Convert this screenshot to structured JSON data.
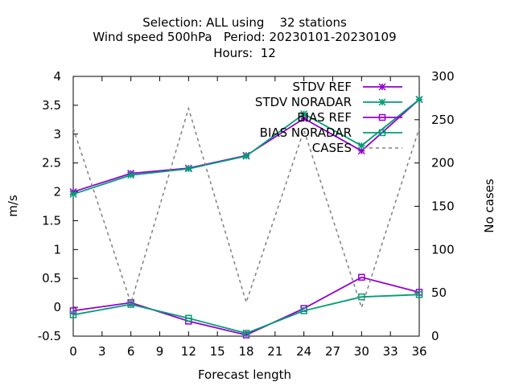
{
  "chart_data": {
    "type": "line",
    "title_lines": [
      "Selection: ALL using    32 stations",
      "Wind speed 500hPa   Period: 20230101-20230109",
      "Hours:  12"
    ],
    "xlabel": "Forecast length",
    "ylabel": "m/s",
    "y2label": "No cases",
    "xlim": [
      0,
      36
    ],
    "ylim": [
      -0.5,
      4
    ],
    "y2lim": [
      0,
      300
    ],
    "x_ticks": [
      "0",
      "3",
      "6",
      "9",
      "12",
      "15",
      "18",
      "21",
      "24",
      "27",
      "30",
      "33",
      "36"
    ],
    "y_ticks": [
      "-0.5",
      "0",
      "0.5",
      "1",
      "1.5",
      "2",
      "2.5",
      "3",
      "3.5",
      "4"
    ],
    "y2_ticks": [
      "0",
      "50",
      "100",
      "150",
      "200",
      "250",
      "300"
    ],
    "grid": false,
    "legend_position": "top-right",
    "x": [
      0,
      6,
      12,
      18,
      24,
      30,
      36
    ],
    "series": [
      {
        "name": "STDV REF",
        "axis": "y1",
        "color": "#9400d3",
        "marker": "x-star",
        "dash": "solid",
        "values": [
          2.0,
          2.32,
          2.41,
          2.63,
          3.27,
          2.71,
          3.6
        ]
      },
      {
        "name": "STDV NORADAR",
        "axis": "y1",
        "color": "#009e73",
        "marker": "x-star",
        "dash": "solid",
        "values": [
          1.96,
          2.29,
          2.4,
          2.62,
          3.35,
          2.8,
          3.6
        ]
      },
      {
        "name": "BIAS REF",
        "axis": "y1",
        "color": "#9400d3",
        "marker": "square",
        "dash": "solid",
        "values": [
          -0.06,
          0.08,
          -0.24,
          -0.48,
          -0.02,
          0.52,
          0.26
        ]
      },
      {
        "name": "BIAS NORADAR",
        "axis": "y1",
        "color": "#009e73",
        "marker": "square",
        "dash": "solid",
        "values": [
          -0.13,
          0.05,
          -0.19,
          -0.45,
          -0.06,
          0.18,
          0.22
        ]
      },
      {
        "name": "CASES",
        "axis": "y2",
        "color": "#808080",
        "marker": "none",
        "dash": "dashed",
        "values": [
          240,
          38,
          263,
          39,
          238,
          33,
          240
        ]
      }
    ]
  }
}
